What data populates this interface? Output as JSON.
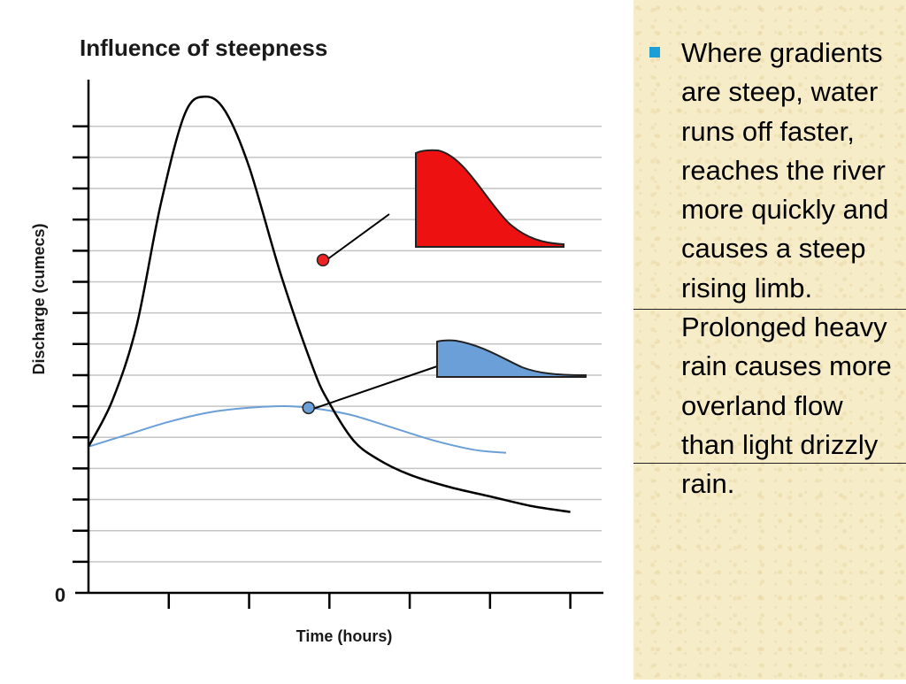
{
  "chart_data": {
    "type": "line",
    "title": "Influence of steepness",
    "xlabel": "Time (hours)",
    "ylabel": "Discharge (cumecs)",
    "y_tick_labels": [
      "0"
    ],
    "xlim": [
      0,
      6.5
    ],
    "ylim": [
      0,
      16.5
    ],
    "grid": true,
    "legend": "none",
    "colors": {
      "steep": "#000000",
      "gentle": "#6a9fd8",
      "steep_marker": "#ee2222",
      "gentle_marker": "#6a9fd8"
    },
    "series": [
      {
        "style": "steep",
        "x": [
          0,
          0.3,
          0.6,
          0.9,
          1.2,
          1.45,
          1.7,
          2.0,
          2.4,
          2.8,
          3.0,
          3.3,
          3.6,
          4.0,
          4.5,
          5.0,
          5.5,
          6.0
        ],
        "y": [
          4.7,
          6.2,
          8.6,
          12.5,
          15.4,
          15.95,
          15.5,
          13.7,
          10.2,
          7.2,
          6.1,
          4.9,
          4.3,
          3.8,
          3.4,
          3.1,
          2.8,
          2.6
        ]
      },
      {
        "style": "gentle",
        "x": [
          0,
          0.5,
          1.0,
          1.5,
          2.0,
          2.5,
          2.9,
          3.3,
          3.8,
          4.3,
          4.8,
          5.2
        ],
        "y": [
          4.7,
          5.1,
          5.5,
          5.8,
          5.95,
          6.0,
          5.9,
          5.7,
          5.3,
          4.9,
          4.6,
          4.5
        ]
      }
    ],
    "markers": [
      {
        "series": "steep",
        "x": 2.92,
        "y": 10.7
      },
      {
        "series": "gentle",
        "x": 2.74,
        "y": 5.95
      }
    ]
  },
  "side_text": {
    "bullet": "Where gradients are steep, water runs off faster, reaches the river more quickly and causes a steep rising limb. Prolonged heavy rain causes more overland flow than light drizzly rain."
  }
}
